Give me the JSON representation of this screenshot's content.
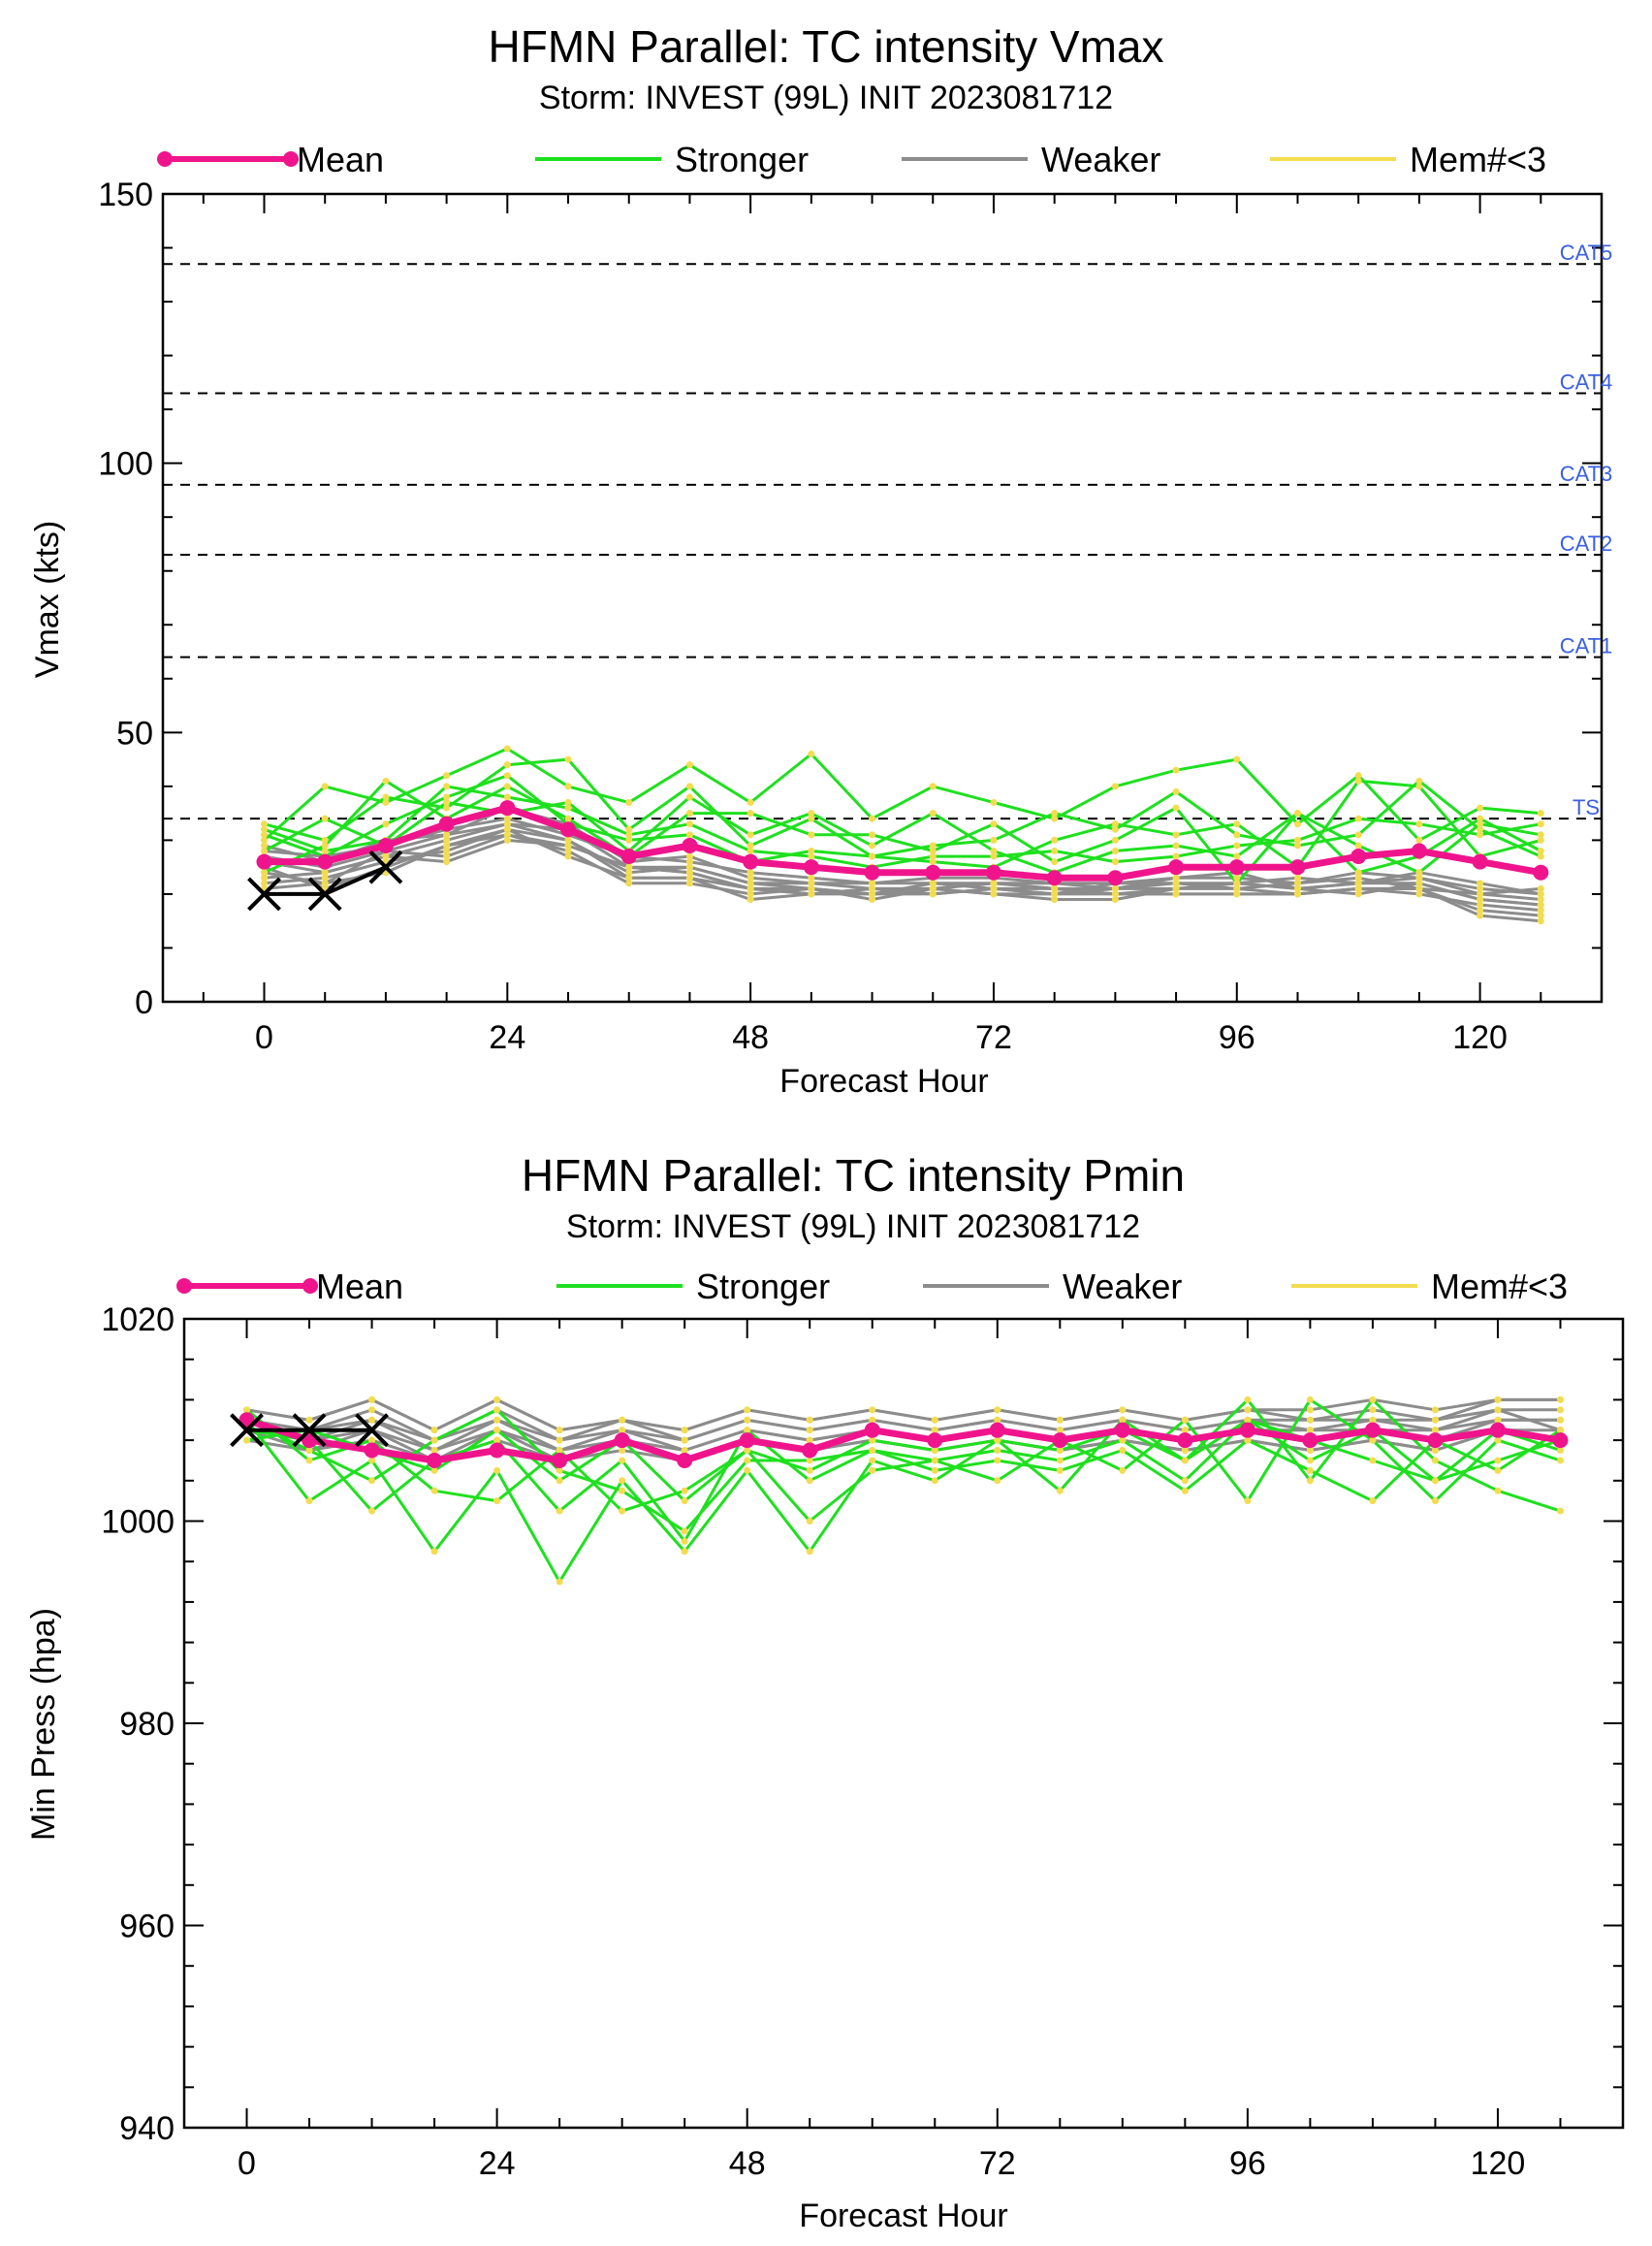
{
  "colors": {
    "mean": "#f0148c",
    "stronger": "#1ee01e",
    "weaker": "#8c8c8c",
    "mem_lt3": "#f2dc50",
    "observed": "#000000",
    "category_label": "#3a5fe0"
  },
  "legend": {
    "mean": "Mean",
    "stronger": "Stronger",
    "weaker": "Weaker",
    "mem_lt3": "Mem#<3"
  },
  "chart_data": [
    {
      "type": "line",
      "title": "HFMN Parallel: TC intensity Vmax",
      "subtitle": "Storm: INVEST (99L) INIT 2023081712",
      "xlabel": "Forecast Hour",
      "ylabel": "Vmax (kts)",
      "xlim": [
        -10,
        132
      ],
      "ylim": [
        0,
        150
      ],
      "xticks": [
        0,
        24,
        48,
        72,
        96,
        120
      ],
      "yticks": [
        0,
        50,
        100,
        150
      ],
      "ytick_labels": [
        "0",
        "50",
        "100",
        "150"
      ],
      "thresholds": [
        {
          "label": "TS",
          "value": 34
        },
        {
          "label": "CAT1",
          "value": 64
        },
        {
          "label": "CAT2",
          "value": 83
        },
        {
          "label": "CAT3",
          "value": 96
        },
        {
          "label": "CAT4",
          "value": 113
        },
        {
          "label": "CAT5",
          "value": 137
        }
      ],
      "x": [
        0,
        6,
        12,
        18,
        24,
        30,
        36,
        42,
        48,
        54,
        60,
        66,
        72,
        78,
        84,
        90,
        96,
        102,
        108,
        114,
        120,
        126
      ],
      "mean": [
        26,
        26,
        29,
        33,
        36,
        32,
        27,
        29,
        26,
        25,
        24,
        24,
        24,
        23,
        23,
        25,
        25,
        25,
        27,
        28,
        26,
        24
      ],
      "observed": {
        "x": [
          0,
          6,
          12
        ],
        "values": [
          20,
          20,
          25
        ]
      },
      "stronger_members": [
        [
          30,
          40,
          37,
          42,
          47,
          40,
          37,
          44,
          37,
          46,
          34,
          40,
          37,
          34,
          40,
          43,
          45,
          33,
          42,
          30,
          36,
          35
        ],
        [
          33,
          30,
          38,
          36,
          44,
          45,
          32,
          40,
          29,
          34,
          27,
          29,
          30,
          35,
          32,
          39,
          31,
          29,
          31,
          41,
          32,
          27
        ],
        [
          24,
          29,
          41,
          34,
          40,
          34,
          27,
          35,
          35,
          31,
          31,
          28,
          33,
          26,
          30,
          36,
          22,
          35,
          29,
          24,
          33,
          31
        ],
        [
          31,
          27,
          33,
          38,
          42,
          33,
          30,
          31,
          26,
          28,
          27,
          26,
          25,
          30,
          33,
          31,
          33,
          25,
          41,
          40,
          27,
          30
        ],
        [
          28,
          34,
          29,
          37,
          35,
          37,
          28,
          38,
          31,
          35,
          29,
          35,
          28,
          24,
          28,
          29,
          27,
          35,
          24,
          27,
          34,
          28
        ],
        [
          32,
          28,
          30,
          40,
          38,
          36,
          31,
          33,
          28,
          27,
          25,
          27,
          27,
          28,
          26,
          27,
          29,
          30,
          34,
          33,
          31,
          33
        ]
      ],
      "weaker_members": [
        [
          24,
          22,
          28,
          27,
          31,
          29,
          25,
          24,
          21,
          20,
          21,
          21,
          22,
          21,
          20,
          21,
          22,
          21,
          22,
          22,
          19,
          18
        ],
        [
          26,
          24,
          27,
          30,
          33,
          30,
          24,
          25,
          22,
          21,
          20,
          22,
          21,
          20,
          22,
          22,
          21,
          22,
          23,
          21,
          20,
          19
        ],
        [
          22,
          23,
          26,
          28,
          32,
          27,
          23,
          23,
          19,
          20,
          21,
          20,
          21,
          21,
          20,
          20,
          20,
          20,
          21,
          20,
          18,
          17
        ],
        [
          28,
          27,
          29,
          32,
          34,
          31,
          27,
          26,
          24,
          23,
          22,
          22,
          22,
          22,
          21,
          23,
          23,
          22,
          24,
          23,
          21,
          20
        ],
        [
          25,
          21,
          25,
          29,
          31,
          28,
          22,
          22,
          20,
          21,
          19,
          21,
          20,
          19,
          19,
          21,
          21,
          20,
          21,
          21,
          17,
          16
        ],
        [
          27,
          25,
          28,
          31,
          36,
          33,
          26,
          27,
          23,
          22,
          22,
          23,
          23,
          22,
          22,
          23,
          24,
          21,
          22,
          24,
          22,
          20
        ],
        [
          23,
          24,
          27,
          26,
          30,
          29,
          25,
          24,
          21,
          21,
          20,
          20,
          21,
          20,
          21,
          21,
          22,
          21,
          20,
          22,
          19,
          18
        ],
        [
          29,
          26,
          30,
          31,
          33,
          32,
          25,
          25,
          22,
          22,
          21,
          21,
          22,
          21,
          21,
          22,
          22,
          23,
          22,
          23,
          20,
          21
        ],
        [
          21,
          22,
          24,
          29,
          32,
          30,
          23,
          23,
          21,
          20,
          20,
          21,
          20,
          20,
          20,
          20,
          20,
          20,
          21,
          21,
          16,
          15
        ]
      ]
    },
    {
      "type": "line",
      "title": "HFMN Parallel: TC intensity Pmin",
      "subtitle": "Storm: INVEST (99L) INIT 2023081712",
      "xlabel": "Forecast Hour",
      "ylabel": "Min Press (hpa)",
      "xlim": [
        -6,
        132
      ],
      "ylim": [
        940,
        1020
      ],
      "xticks": [
        0,
        24,
        48,
        72,
        96,
        120
      ],
      "yticks": [
        940,
        960,
        980,
        1000,
        1020
      ],
      "ytick_labels": [
        "940",
        "960",
        "980",
        "1000",
        "1020"
      ],
      "x": [
        0,
        6,
        12,
        18,
        24,
        30,
        36,
        42,
        48,
        54,
        60,
        66,
        72,
        78,
        84,
        90,
        96,
        102,
        108,
        114,
        120,
        126
      ],
      "mean": [
        1010,
        1008,
        1007,
        1006,
        1007,
        1006,
        1008,
        1006,
        1008,
        1007,
        1009,
        1008,
        1009,
        1008,
        1009,
        1008,
        1009,
        1008,
        1009,
        1008,
        1009,
        1008
      ],
      "observed": {
        "x": [
          0,
          6,
          12
        ],
        "values": [
          1009,
          1009,
          1009
        ]
      },
      "stronger_members": [
        [
          1010,
          1002,
          1006,
          997,
          1005,
          994,
          1004,
          997,
          1005,
          997,
          1006,
          1004,
          1008,
          1003,
          1010,
          1006,
          1012,
          1004,
          1012,
          1006,
          1003,
          1001
        ],
        [
          1011,
          1006,
          1008,
          1003,
          1002,
          1007,
          1001,
          1003,
          1007,
          1000,
          1005,
          1006,
          1004,
          1008,
          1005,
          1010,
          1002,
          1012,
          1008,
          1002,
          1008,
          1006
        ],
        [
          1009,
          1008,
          1001,
          1006,
          1008,
          1001,
          1006,
          998,
          1009,
          1004,
          1007,
          1006,
          1007,
          1006,
          1008,
          1004,
          1010,
          1008,
          1006,
          1004,
          1006,
          1008
        ],
        [
          1010,
          1007,
          1004,
          1008,
          1011,
          1005,
          1003,
          999,
          1006,
          1006,
          1007,
          1005,
          1006,
          1005,
          1007,
          1003,
          1008,
          1005,
          1002,
          1008,
          1005,
          1009
        ],
        [
          1008,
          1009,
          1007,
          1005,
          1009,
          1004,
          1008,
          1002,
          1007,
          1005,
          1008,
          1007,
          1008,
          1007,
          1009,
          1006,
          1010,
          1006,
          1009,
          1004,
          1009,
          1007
        ]
      ],
      "weaker_members": [
        [
          1011,
          1010,
          1012,
          1009,
          1012,
          1009,
          1010,
          1009,
          1011,
          1010,
          1011,
          1010,
          1011,
          1010,
          1011,
          1010,
          1011,
          1011,
          1012,
          1011,
          1012,
          1012
        ],
        [
          1010,
          1009,
          1010,
          1008,
          1010,
          1008,
          1009,
          1008,
          1010,
          1009,
          1010,
          1009,
          1010,
          1009,
          1010,
          1009,
          1010,
          1010,
          1010,
          1010,
          1011,
          1011
        ],
        [
          1009,
          1008,
          1009,
          1007,
          1009,
          1007,
          1008,
          1007,
          1009,
          1008,
          1009,
          1008,
          1009,
          1008,
          1009,
          1008,
          1009,
          1009,
          1009,
          1009,
          1010,
          1010
        ],
        [
          1010,
          1009,
          1011,
          1008,
          1011,
          1008,
          1010,
          1008,
          1010,
          1009,
          1010,
          1009,
          1010,
          1009,
          1010,
          1009,
          1010,
          1009,
          1010,
          1009,
          1011,
          1009
        ],
        [
          1011,
          1010,
          1012,
          1009,
          1012,
          1009,
          1010,
          1009,
          1011,
          1010,
          1011,
          1010,
          1011,
          1010,
          1011,
          1010,
          1011,
          1010,
          1011,
          1010,
          1012,
          1012
        ],
        [
          1008,
          1007,
          1008,
          1006,
          1008,
          1006,
          1007,
          1006,
          1008,
          1007,
          1008,
          1007,
          1008,
          1007,
          1008,
          1007,
          1008,
          1007,
          1008,
          1007,
          1009,
          1008
        ],
        [
          1010,
          1008,
          1010,
          1007,
          1010,
          1007,
          1009,
          1007,
          1009,
          1008,
          1009,
          1008,
          1009,
          1008,
          1009,
          1008,
          1009,
          1008,
          1009,
          1008,
          1010,
          1010
        ],
        [
          1009,
          1007,
          1009,
          1006,
          1009,
          1006,
          1008,
          1006,
          1008,
          1007,
          1008,
          1007,
          1008,
          1007,
          1008,
          1007,
          1008,
          1007,
          1008,
          1007,
          1009,
          1009
        ]
      ]
    }
  ]
}
